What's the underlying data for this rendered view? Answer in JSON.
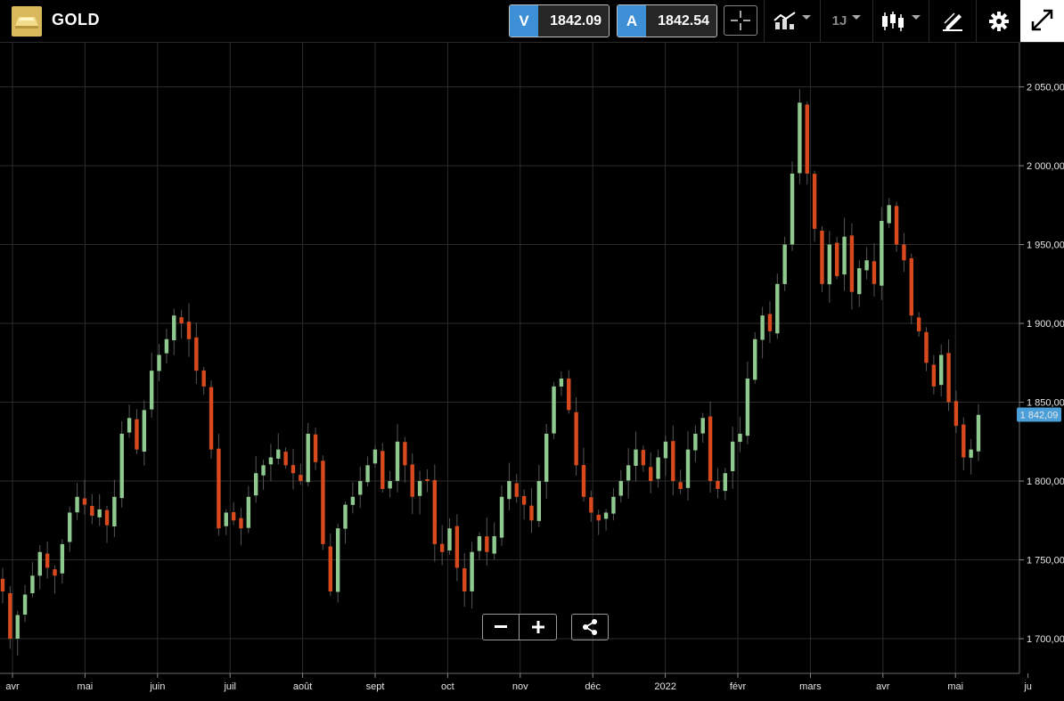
{
  "header": {
    "symbol": "GOLD",
    "sell_tag": "V",
    "sell_price": "1842.09",
    "buy_tag": "A",
    "buy_price": "1842.54",
    "timeframe": "1J",
    "icons": [
      "gold-bar-icon",
      "crosshair-icon",
      "indicators-icon",
      "candlestick-icon",
      "drawing-icon",
      "gear-icon",
      "expand-icon"
    ]
  },
  "controls": {
    "zoom_out_icon": "minus-icon",
    "zoom_in_icon": "plus-icon",
    "share_icon": "share-icon"
  },
  "colors": {
    "up": "#8fc98f",
    "down": "#d84a1e",
    "accent": "#3d8fd6",
    "last_price_bg": "#4a9fd8"
  },
  "chart_data": {
    "type": "candlestick",
    "y_tick_labels": [
      "1 700,00",
      "1 750,00",
      "1 800,00",
      "1 850,00",
      "1 900,00",
      "1 950,00",
      "2 000,00",
      "2 050,00"
    ],
    "y_ticks": [
      1700,
      1750,
      1800,
      1850,
      1900,
      1950,
      2000,
      2050
    ],
    "ylim": [
      1678,
      2078
    ],
    "x_tick_labels": [
      "avr",
      "mai",
      "juin",
      "juil",
      "août",
      "sept",
      "oct",
      "nov",
      "déc",
      "2022",
      "févr",
      "mars",
      "avr",
      "mai",
      "ju"
    ],
    "last_price_label": "1 842,09",
    "last_price": 1842.09,
    "grid": true,
    "close_series_approx": [
      1730,
      1700,
      1715,
      1728,
      1740,
      1755,
      1745,
      1740,
      1760,
      1780,
      1790,
      1785,
      1778,
      1782,
      1772,
      1790,
      1830,
      1840,
      1820,
      1845,
      1870,
      1880,
      1890,
      1905,
      1900,
      1890,
      1870,
      1860,
      1820,
      1770,
      1780,
      1775,
      1770,
      1790,
      1805,
      1810,
      1815,
      1820,
      1810,
      1805,
      1800,
      1830,
      1812,
      1760,
      1730,
      1770,
      1785,
      1790,
      1800,
      1810,
      1820,
      1795,
      1800,
      1825,
      1810,
      1790,
      1800,
      1800,
      1760,
      1755,
      1770,
      1745,
      1730,
      1755,
      1765,
      1755,
      1765,
      1790,
      1800,
      1790,
      1785,
      1775,
      1800,
      1830,
      1860,
      1865,
      1845,
      1810,
      1790,
      1780,
      1775,
      1780,
      1790,
      1800,
      1810,
      1820,
      1810,
      1800,
      1815,
      1825,
      1800,
      1795,
      1820,
      1830,
      1840,
      1800,
      1795,
      1805,
      1825,
      1830,
      1865,
      1890,
      1905,
      1895,
      1925,
      1950,
      1995,
      2040,
      1995,
      1960,
      1925,
      1950,
      1930,
      1955,
      1920,
      1935,
      1940,
      1925,
      1965,
      1975,
      1950,
      1940,
      1905,
      1895,
      1875,
      1860,
      1880,
      1850,
      1835,
      1815,
      1820,
      1842
    ]
  }
}
